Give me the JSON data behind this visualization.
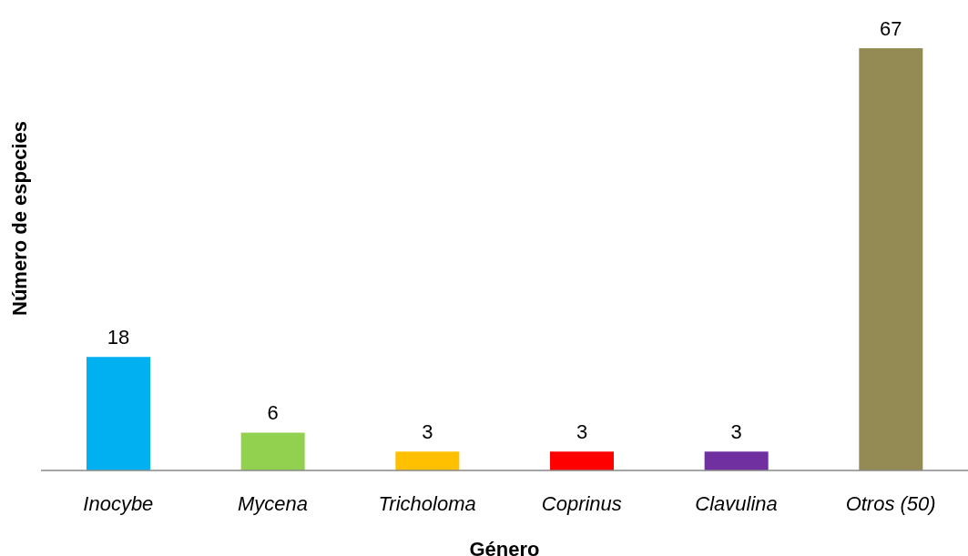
{
  "chart_data": {
    "type": "bar",
    "xlabel": "Género",
    "ylabel": "Número de especies",
    "categories": [
      "Inocybe",
      "Mycena",
      "Tricholoma",
      "Coprinus",
      "Clavulina",
      "Otros (50)"
    ],
    "values": [
      18,
      6,
      3,
      3,
      3,
      67
    ],
    "colors": [
      "#00b0f0",
      "#92d050",
      "#ffc000",
      "#ff0000",
      "#7030a0",
      "#948a54"
    ],
    "data_labels": true,
    "grid": false,
    "legend": false
  }
}
